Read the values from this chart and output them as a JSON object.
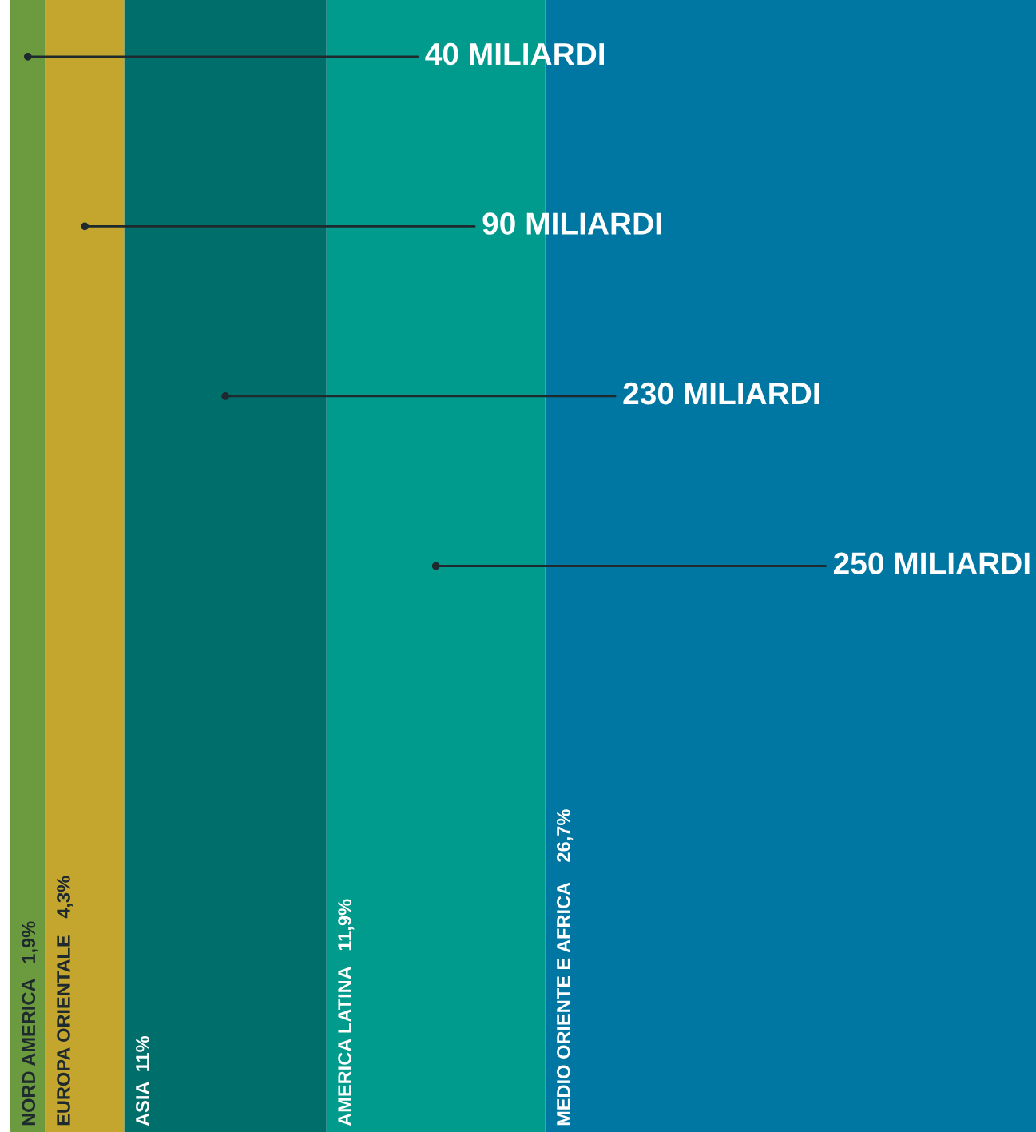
{
  "chart_data": {
    "type": "other",
    "categories": [
      "NORD AMERICA",
      "EUROPA ORIENTALE",
      "ASIA",
      "AMERICA LATINA",
      "MEDIO ORIENTE E AFRICA"
    ],
    "values": [
      1.9,
      4.3,
      11,
      11.9,
      26.7
    ],
    "value_labels": [
      "1,9%",
      "4,3%",
      "11%",
      "11,9%",
      "26,7%"
    ],
    "colors": [
      "#6b9a3f",
      "#c4a62f",
      "#006f6b",
      "#009b8c",
      "#0077a3"
    ],
    "annotations": [
      "40 MILIARDI",
      "90 MILIARDI",
      "230 MILIARDI",
      "250 MILIARDI"
    ]
  }
}
